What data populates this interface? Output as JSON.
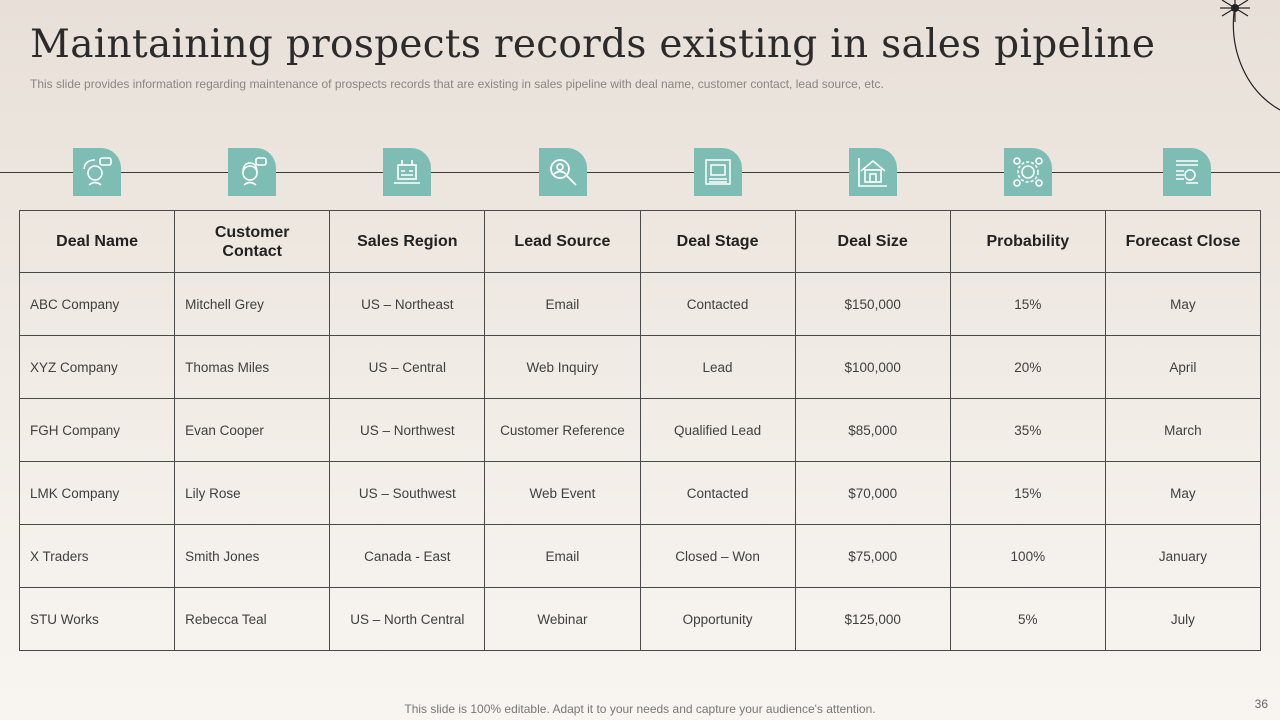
{
  "title": "Maintaining prospects records existing in sales pipeline",
  "subtitle": "This slide provides information regarding maintenance of prospects records that are existing in sales pipeline with deal name, customer contact, lead source, etc.",
  "icons": [
    "prospect-chat-icon",
    "customer-support-icon",
    "sales-region-icon",
    "lead-search-icon",
    "deal-stage-icon",
    "deal-house-icon",
    "probability-gear-icon",
    "forecast-document-icon"
  ],
  "accent_color": "#7dbdb4",
  "table": {
    "headers": [
      "Deal Name",
      "Customer Contact",
      "Sales Region",
      "Lead Source",
      "Deal Stage",
      "Deal Size",
      "Probability",
      "Forecast Close"
    ],
    "rows": [
      [
        "ABC Company",
        "Mitchell Grey",
        "US – Northeast",
        "Email",
        "Contacted",
        "$150,000",
        "15%",
        "May"
      ],
      [
        "XYZ  Company",
        "Thomas  Miles",
        "US – Central",
        "Web Inquiry",
        "Lead",
        "$100,000",
        "20%",
        "April"
      ],
      [
        "FGH Company",
        "Evan Cooper",
        "US – Northwest",
        "Customer Reference",
        "Qualified  Lead",
        "$85,000",
        "35%",
        "March"
      ],
      [
        "LMK Company",
        "Lily Rose",
        "US – Southwest",
        "Web Event",
        "Contacted",
        "$70,000",
        "15%",
        "May"
      ],
      [
        "X Traders",
        "Smith Jones",
        "Canada  - East",
        "Email",
        "Closed – Won",
        "$75,000",
        "100%",
        "January"
      ],
      [
        "STU Works",
        "Rebecca Teal",
        "US – North Central",
        "Webinar",
        "Opportunity",
        "$125,000",
        "5%",
        "July"
      ]
    ]
  },
  "footer": "This slide is 100% editable. Adapt it to your needs and capture your audience's attention.",
  "page_number": "36"
}
